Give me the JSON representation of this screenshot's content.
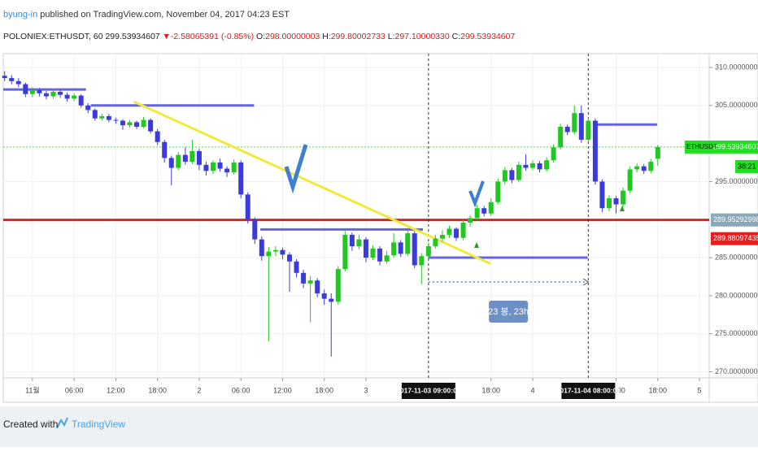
{
  "header": {
    "author": "byung-in",
    "published": "published on TradingView.com, November 04, 2017 04:23 EST",
    "symbol": "POLONIEX:ETHUSDT, 60",
    "last": "299.53934607",
    "change": "▼-2.58065391 (-0.85%)",
    "ohlc": [
      {
        "key": "O:",
        "value": "298.00000003"
      },
      {
        "key": "H:",
        "value": "299.80002733"
      },
      {
        "key": "L:",
        "value": "297.10000330"
      },
      {
        "key": "C:",
        "value": "299.53934607"
      }
    ]
  },
  "chart_data": {
    "type": "candlestick",
    "x": [
      -4,
      -3,
      -2,
      -1,
      0,
      1,
      2,
      3,
      4,
      5,
      6,
      7,
      8,
      9,
      10,
      11,
      12,
      13,
      14,
      15,
      16,
      17,
      18,
      19,
      20,
      21,
      22,
      23,
      24,
      25,
      26,
      27,
      28,
      29,
      30,
      31,
      32,
      33,
      34,
      35,
      36,
      37,
      38,
      39,
      40,
      41,
      42,
      43,
      44,
      45,
      46,
      47,
      48,
      49,
      50,
      51,
      52,
      53,
      54,
      55,
      56,
      57,
      58,
      59,
      60,
      61,
      62,
      63,
      64,
      65,
      66,
      67,
      68,
      69,
      70,
      71,
      72,
      73,
      74,
      75,
      76,
      77,
      78,
      79,
      80,
      81,
      82,
      83,
      84,
      85,
      86,
      87,
      88,
      89,
      90
    ],
    "open": [
      308.9,
      308.6,
      308.2,
      307.8,
      306.5,
      307.0,
      306.6,
      306.2,
      306.8,
      306.4,
      305.9,
      306.3,
      305.0,
      304.4,
      303.3,
      303.6,
      303.1,
      303.0,
      302.4,
      302.8,
      302.2,
      303.1,
      301.6,
      300.2,
      298.1,
      296.8,
      298.5,
      297.6,
      299.0,
      297.2,
      296.4,
      297.5,
      296.7,
      296.2,
      297.5,
      293.3,
      290.0,
      287.4,
      285.2,
      285.8,
      286.0,
      285.4,
      284.5,
      283.0,
      281.6,
      282.0,
      280.3,
      279.6,
      279.2,
      283.5,
      288.0,
      286.5,
      287.4,
      285.0,
      286.2,
      284.5,
      285.3,
      287.0,
      285.5,
      288.2,
      284.0,
      285.2,
      286.5,
      287.5,
      288.0,
      288.8,
      287.6,
      289.6,
      290.2,
      291.5,
      290.8,
      292.3,
      295.0,
      296.5,
      295.2,
      297.2,
      296.8,
      297.4,
      296.6,
      297.8,
      299.5,
      302.2,
      301.5,
      304.0,
      300.5,
      303.0,
      295.0,
      291.5,
      292.8,
      292.0,
      293.8,
      296.6,
      297.0,
      296.4,
      298.00000003
    ],
    "high": [
      309.5,
      309.0,
      308.6,
      308.0,
      307.4,
      307.3,
      306.9,
      307.1,
      307.0,
      306.7,
      306.6,
      306.5,
      305.3,
      304.6,
      303.9,
      303.9,
      303.4,
      303.2,
      303.1,
      303.0,
      303.5,
      303.3,
      301.9,
      300.5,
      298.4,
      298.9,
      299.5,
      300.5,
      299.3,
      297.6,
      297.8,
      298.0,
      297.0,
      297.9,
      297.8,
      293.6,
      290.3,
      287.8,
      286.4,
      286.5,
      286.3,
      285.7,
      284.8,
      283.4,
      282.6,
      282.3,
      280.8,
      280.3,
      283.9,
      288.5,
      288.3,
      288.0,
      287.7,
      286.6,
      286.5,
      285.9,
      288.2,
      287.3,
      288.6,
      288.5,
      285.6,
      287.0,
      288.0,
      288.6,
      289.2,
      289.0,
      290.0,
      290.6,
      292.0,
      291.8,
      292.8,
      295.4,
      296.9,
      296.8,
      297.6,
      298.6,
      297.8,
      297.7,
      298.2,
      299.9,
      302.6,
      302.5,
      305.0,
      305.0,
      303.4,
      303.3,
      295.3,
      293.2,
      293.1,
      294.2,
      297.0,
      297.4,
      297.3,
      298.0,
      299.80002733
    ],
    "low": [
      308.2,
      307.8,
      307.4,
      306.1,
      306.1,
      306.2,
      305.8,
      305.9,
      306.0,
      305.5,
      305.6,
      304.7,
      304.0,
      303.0,
      303.0,
      302.8,
      302.6,
      301.8,
      302.1,
      301.9,
      302.0,
      301.3,
      299.8,
      297.5,
      294.5,
      296.5,
      297.2,
      297.3,
      296.5,
      295.8,
      296.0,
      296.3,
      295.6,
      295.9,
      292.8,
      289.5,
      286.8,
      284.6,
      274.0,
      285.2,
      284.8,
      280.5,
      282.4,
      281.0,
      276.5,
      279.8,
      278.8,
      272.0,
      278.8,
      283.2,
      285.9,
      286.1,
      284.4,
      284.7,
      284.0,
      284.2,
      285.0,
      285.1,
      285.2,
      283.6,
      281.5,
      284.9,
      286.2,
      287.1,
      287.6,
      287.2,
      287.3,
      289.1,
      289.9,
      290.4,
      290.5,
      292.0,
      294.6,
      294.8,
      294.9,
      296.4,
      296.5,
      296.2,
      296.3,
      297.5,
      299.2,
      301.1,
      301.2,
      300.1,
      300.2,
      294.6,
      291.0,
      291.1,
      290.8,
      291.6,
      293.5,
      296.2,
      296.0,
      296.1,
      297.1000033
    ],
    "close": [
      308.6,
      308.2,
      307.8,
      306.5,
      307.0,
      306.6,
      306.2,
      306.8,
      306.4,
      305.9,
      306.3,
      305.0,
      304.4,
      303.3,
      303.6,
      303.1,
      303.0,
      302.4,
      302.8,
      302.2,
      303.1,
      301.6,
      300.2,
      298.1,
      296.8,
      298.5,
      297.6,
      299.0,
      297.2,
      296.4,
      297.5,
      296.7,
      296.2,
      297.5,
      293.3,
      290.0,
      287.4,
      285.2,
      285.8,
      286.0,
      285.4,
      284.5,
      283.0,
      281.6,
      282.0,
      280.3,
      279.6,
      279.2,
      283.5,
      288.0,
      286.5,
      287.4,
      285.0,
      286.2,
      284.5,
      285.3,
      287.0,
      285.5,
      288.2,
      284.0,
      285.2,
      286.5,
      287.5,
      288.0,
      288.8,
      287.6,
      289.6,
      290.2,
      291.5,
      290.8,
      292.3,
      295.0,
      296.5,
      295.2,
      297.2,
      296.8,
      297.4,
      296.6,
      297.8,
      299.5,
      302.2,
      301.5,
      304.0,
      300.5,
      303.0,
      295.0,
      291.5,
      292.8,
      292.0,
      293.8,
      296.6,
      297.0,
      296.4,
      297.6,
      299.53934607
    ],
    "up_color": "#22c822",
    "down_color": "#3b3bdb",
    "xlim": [
      -4.2,
      97.4
    ],
    "ylim": [
      269.2,
      311.6
    ],
    "xticks": [
      {
        "value": 0,
        "label": "11월"
      },
      {
        "value": 6,
        "label": "06:00"
      },
      {
        "value": 12,
        "label": "12:00"
      },
      {
        "value": 18,
        "label": "18:00"
      },
      {
        "value": 24,
        "label": "2"
      },
      {
        "value": 30,
        "label": "06:00"
      },
      {
        "value": 36,
        "label": "12:00"
      },
      {
        "value": 42,
        "label": "18:00"
      },
      {
        "value": 48,
        "label": "3"
      },
      {
        "value": 66,
        "label": "18:00"
      },
      {
        "value": 72,
        "label": "4"
      },
      {
        "value": 84,
        "label": "12:00"
      },
      {
        "value": 90,
        "label": "18:00"
      },
      {
        "value": 96,
        "label": "5"
      }
    ],
    "yticks": [
      {
        "value": 310,
        "label": "310.00000000"
      },
      {
        "value": 305,
        "label": "305.00000000"
      },
      {
        "value": 295,
        "label": "295.00000000"
      },
      {
        "value": 285,
        "label": "285.00000000"
      },
      {
        "value": 280,
        "label": "280.00000000"
      },
      {
        "value": 275,
        "label": "275.00000000"
      },
      {
        "value": 270,
        "label": "270.00000000"
      }
    ],
    "grid": true,
    "x_markers": [
      {
        "value": 57,
        "label": "2017-11-03 09:00:00"
      },
      {
        "value": 80,
        "label": "2017-11-04 08:00:00"
      }
    ],
    "levels": [
      {
        "y": 289.95292998,
        "color": "#e41f1f",
        "width": 3
      },
      {
        "y": 299.53934607,
        "color": "#5ad35a",
        "width": 1
      }
    ],
    "drawings": [
      {
        "x": [
          -4.2,
          7.7
        ],
        "y": [
          307.1,
          307.1
        ],
        "color": "#6464e8"
      },
      {
        "x": [
          8.4,
          31.9
        ],
        "y": [
          305.0,
          305.0
        ],
        "color": "#6464e8"
      },
      {
        "x": [
          32.8,
          56.2
        ],
        "y": [
          288.7,
          288.7
        ],
        "color": "#6464e8"
      },
      {
        "x": [
          57.0,
          79.9
        ],
        "y": [
          285.0,
          285.0
        ],
        "color": "#6464e8"
      },
      {
        "x": [
          80.8,
          89.9
        ],
        "y": [
          302.5,
          302.5
        ],
        "color": "#6464e8"
      },
      {
        "x": [
          14.6,
          65.9
        ],
        "y": [
          305.5,
          284.2
        ],
        "color": "#f2ea3a"
      }
    ],
    "range": {
      "x": [
        57,
        80
      ],
      "y": 281.8,
      "label": "23 봉, 23h"
    },
    "price_badges": [
      {
        "value": 299.53934607,
        "label": "299.53934607",
        "color": "#22dd22"
      },
      {
        "value": 289.95292998,
        "label": "289.95292998",
        "color": "#8aa8b8"
      },
      {
        "value": 289.88097435,
        "label": "289.88097435",
        "color": "#e41f1f"
      }
    ],
    "symbol_badge": "ETHUSDT",
    "countdown": "38:21"
  },
  "footer": {
    "created": "Created with",
    "brand": "TradingView"
  }
}
